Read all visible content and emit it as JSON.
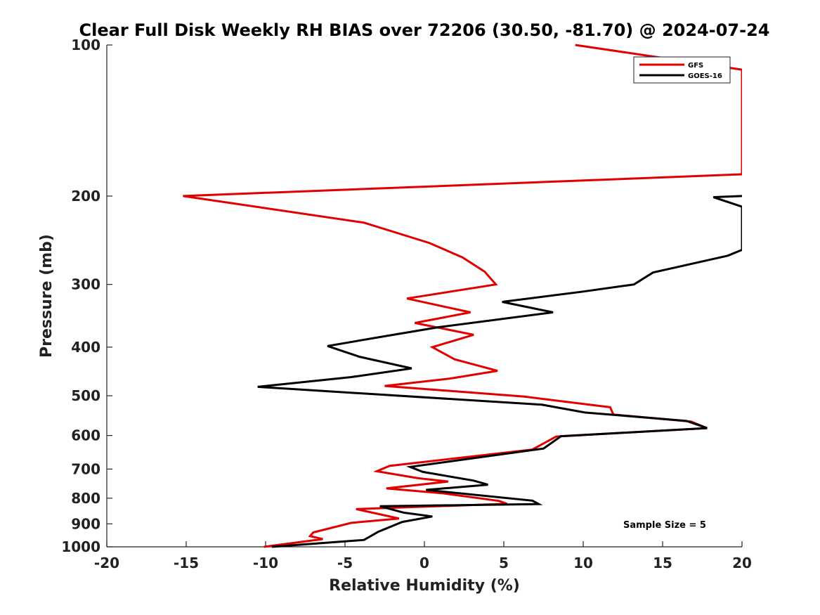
{
  "chart_data": {
    "type": "line",
    "title": "Clear Full Disk Weekly RH BIAS over 72206 (30.50, -81.70) @ 2024-07-24",
    "xlabel": "Relative Humidity (%)",
    "ylabel": "Pressure (mb)",
    "xlim": [
      -20,
      20
    ],
    "ylim": [
      1000,
      100
    ],
    "y_scale": "log",
    "y_reversed": true,
    "x_ticks": [
      "-20",
      "-15",
      "-10",
      "-5",
      "0",
      "5",
      "10",
      "15",
      "20"
    ],
    "y_ticks": [
      "100",
      "200",
      "300",
      "400",
      "500",
      "600",
      "700",
      "800",
      "900",
      "1000"
    ],
    "grid": false,
    "legend_position": "top-right",
    "annotation": "Sample Size = 5",
    "series": [
      {
        "name": "GFS",
        "color": "#e00000",
        "points": [
          [
            9.5,
            100
          ],
          [
            20,
            112
          ],
          [
            20,
            181
          ],
          [
            -15.2,
            200
          ],
          [
            -3.8,
            226
          ],
          [
            0.3,
            248
          ],
          [
            2.4,
            265
          ],
          [
            3.8,
            283
          ],
          [
            4.5,
            300
          ],
          [
            -1.1,
            320
          ],
          [
            2.9,
            341
          ],
          [
            -0.6,
            358
          ],
          [
            3.1,
            378
          ],
          [
            0.5,
            400
          ],
          [
            1.9,
            423
          ],
          [
            4.6,
            446
          ],
          [
            1.6,
            462
          ],
          [
            -2.5,
            478
          ],
          [
            6.3,
            502
          ],
          [
            11.7,
            527
          ],
          [
            11.9,
            545
          ],
          [
            16.8,
            563
          ],
          [
            17.8,
            580
          ],
          [
            8.3,
            603
          ],
          [
            6.8,
            640
          ],
          [
            -2.2,
            690
          ],
          [
            -3.0,
            707
          ],
          [
            -0.4,
            730
          ],
          [
            1.5,
            741
          ],
          [
            -2.4,
            765
          ],
          [
            1.1,
            782
          ],
          [
            4.7,
            810
          ],
          [
            5.2,
            821
          ],
          [
            -4.3,
            841
          ],
          [
            -1.6,
            878
          ],
          [
            -4.6,
            896
          ],
          [
            -7.0,
            936
          ],
          [
            -7.2,
            952
          ],
          [
            -6.4,
            965
          ],
          [
            -10.1,
            1000
          ]
        ]
      },
      {
        "name": "GOES-16",
        "color": "#000000",
        "points": [
          [
            20,
            200
          ],
          [
            18.2,
            201
          ],
          [
            20,
            210
          ],
          [
            20,
            256
          ],
          [
            19.1,
            263
          ],
          [
            14.4,
            284
          ],
          [
            13.2,
            300
          ],
          [
            10.0,
            310
          ],
          [
            4.9,
            325
          ],
          [
            8.1,
            341
          ],
          [
            0.9,
            365
          ],
          [
            -2.4,
            380
          ],
          [
            -6.1,
            398
          ],
          [
            -4.1,
            418
          ],
          [
            -0.8,
            441
          ],
          [
            -4.6,
            459
          ],
          [
            -10.5,
            480
          ],
          [
            7.4,
            521
          ],
          [
            10.1,
            540
          ],
          [
            16.5,
            561
          ],
          [
            17.8,
            580
          ],
          [
            8.6,
            602
          ],
          [
            7.5,
            637
          ],
          [
            -0.9,
            693
          ],
          [
            -0.1,
            709
          ],
          [
            3.1,
            738
          ],
          [
            4.0,
            752
          ],
          [
            0.1,
            770
          ],
          [
            6.8,
            809
          ],
          [
            7.2,
            822
          ],
          [
            -2.8,
            830
          ],
          [
            -1.3,
            855
          ],
          [
            0.5,
            870
          ],
          [
            -1.4,
            892
          ],
          [
            -2.9,
            933
          ],
          [
            -3.8,
            969
          ],
          [
            -9.6,
            1000
          ]
        ]
      }
    ]
  }
}
